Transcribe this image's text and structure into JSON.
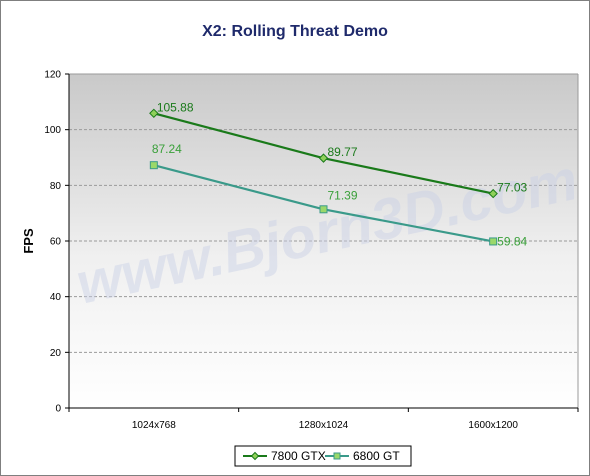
{
  "chart_data": {
    "type": "line",
    "title": "X2: Rolling Threat Demo",
    "xlabel": "",
    "ylabel": "FPS",
    "categories": [
      "1024x768",
      "1280x1024",
      "1600x1200"
    ],
    "ylim": [
      0,
      120
    ],
    "yticks": [
      0,
      20,
      40,
      60,
      80,
      100,
      120
    ],
    "grid": true,
    "legend_position": "bottom",
    "watermark": "www.Bjorn3D.com",
    "series": [
      {
        "name": "7800 GTX",
        "values": [
          105.88,
          89.77,
          77.03
        ],
        "color": "#1a7a1a",
        "label_color": "#1a7a1a",
        "marker": "diamond"
      },
      {
        "name": "6800 GT",
        "values": [
          87.24,
          71.39,
          59.84
        ],
        "color": "#3a9a8a",
        "label_color": "#3aa03a",
        "marker": "square"
      }
    ]
  }
}
